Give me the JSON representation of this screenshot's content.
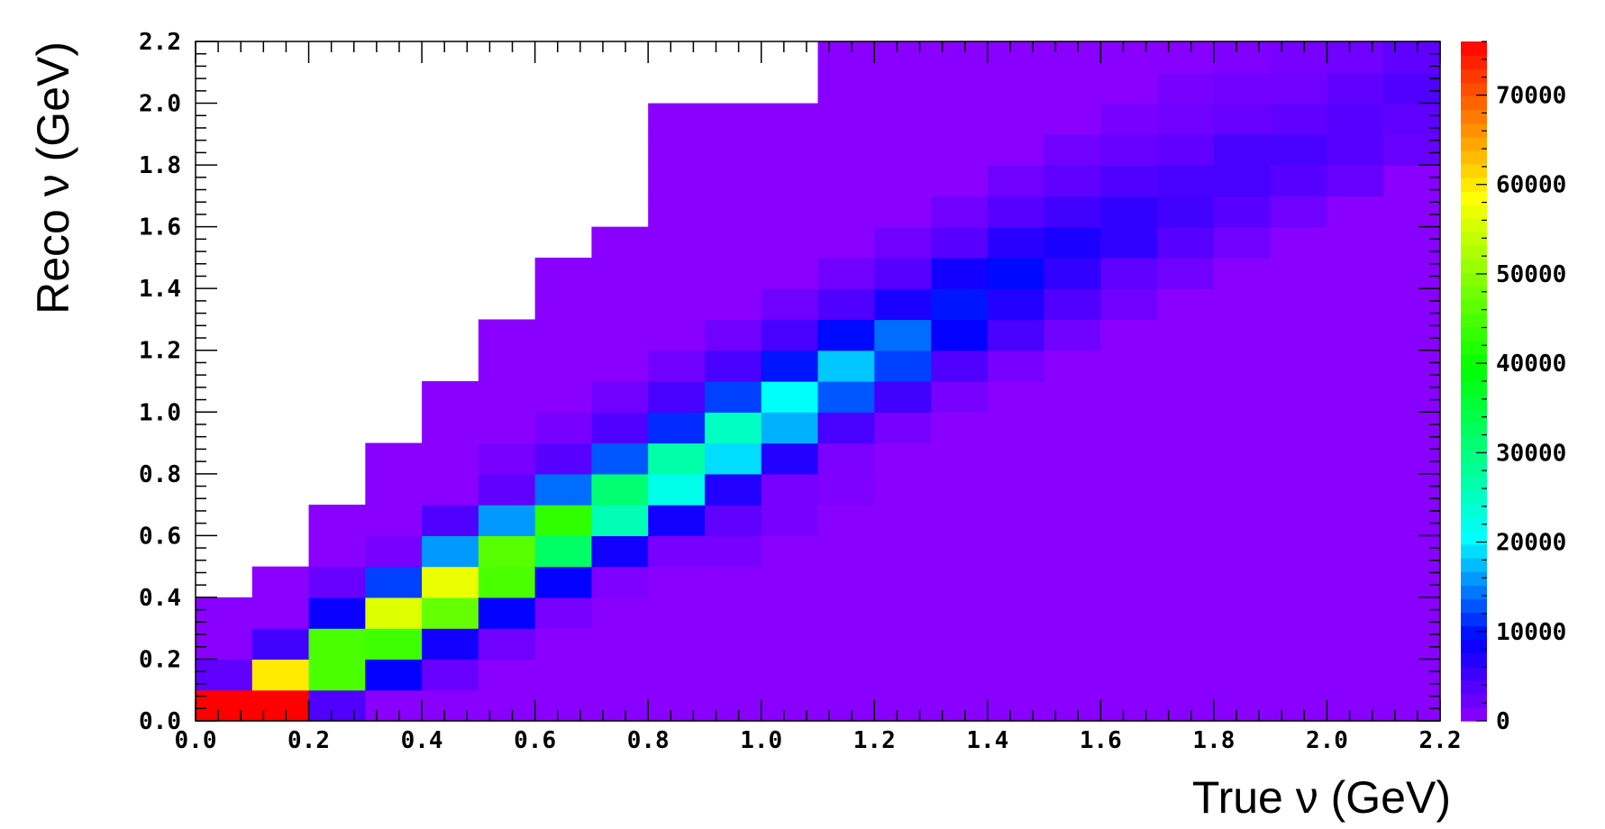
{
  "chart_data": {
    "type": "heatmap",
    "title": "",
    "xlabel": "True ν (GeV)",
    "ylabel": "Reco ν (GeV)",
    "xlim": [
      0,
      2.2
    ],
    "ylim": [
      0,
      2.2
    ],
    "bin_width": 0.1,
    "x_ticks": [
      "0.0",
      "0.2",
      "0.4",
      "0.6",
      "0.8",
      "1.0",
      "1.2",
      "1.4",
      "1.6",
      "1.8",
      "2.0",
      "2.2"
    ],
    "y_ticks": [
      "0.0",
      "0.2",
      "0.4",
      "0.6",
      "0.8",
      "1.0",
      "1.2",
      "1.4",
      "1.6",
      "1.8",
      "2.0",
      "2.2"
    ],
    "colorbar": {
      "min": 0,
      "max": 76000,
      "ticks": [
        "0",
        "10000",
        "20000",
        "30000",
        "40000",
        "50000",
        "60000",
        "70000"
      ]
    },
    "grid": false,
    "cells": [
      {
        "x": 0.0,
        "y": 0.0,
        "v": 76000
      },
      {
        "x": 0.1,
        "y": 0.0,
        "v": 76000
      },
      {
        "x": 0.2,
        "y": 0.0,
        "v": 4000
      },
      {
        "x": 0.0,
        "y": 0.1,
        "v": 3000
      },
      {
        "x": 0.1,
        "y": 0.1,
        "v": 60000
      },
      {
        "x": 0.2,
        "y": 0.1,
        "v": 45000
      },
      {
        "x": 0.3,
        "y": 0.1,
        "v": 9000
      },
      {
        "x": 0.4,
        "y": 0.1,
        "v": 2500
      },
      {
        "x": 0.0,
        "y": 0.2,
        "v": 300
      },
      {
        "x": 0.1,
        "y": 0.2,
        "v": 5000
      },
      {
        "x": 0.2,
        "y": 0.2,
        "v": 45000
      },
      {
        "x": 0.3,
        "y": 0.2,
        "v": 44000
      },
      {
        "x": 0.4,
        "y": 0.2,
        "v": 8000
      },
      {
        "x": 0.5,
        "y": 0.2,
        "v": 2000
      },
      {
        "x": 0.2,
        "y": 0.3,
        "v": 8500
      },
      {
        "x": 0.3,
        "y": 0.3,
        "v": 56000
      },
      {
        "x": 0.4,
        "y": 0.3,
        "v": 47000
      },
      {
        "x": 0.5,
        "y": 0.3,
        "v": 9000
      },
      {
        "x": 0.6,
        "y": 0.3,
        "v": 1500
      },
      {
        "x": 0.1,
        "y": 0.4,
        "v": 200
      },
      {
        "x": 0.2,
        "y": 0.4,
        "v": 2500
      },
      {
        "x": 0.3,
        "y": 0.4,
        "v": 12000
      },
      {
        "x": 0.4,
        "y": 0.4,
        "v": 57000
      },
      {
        "x": 0.5,
        "y": 0.4,
        "v": 45000
      },
      {
        "x": 0.6,
        "y": 0.4,
        "v": 9000
      },
      {
        "x": 0.7,
        "y": 0.4,
        "v": 1000
      },
      {
        "x": 0.3,
        "y": 0.5,
        "v": 1500
      },
      {
        "x": 0.4,
        "y": 0.5,
        "v": 16000
      },
      {
        "x": 0.5,
        "y": 0.5,
        "v": 46000
      },
      {
        "x": 0.6,
        "y": 0.5,
        "v": 32000
      },
      {
        "x": 0.7,
        "y": 0.5,
        "v": 8000
      },
      {
        "x": 0.8,
        "y": 0.5,
        "v": 1500
      },
      {
        "x": 0.9,
        "y": 0.5,
        "v": 1500
      },
      {
        "x": 0.4,
        "y": 0.6,
        "v": 4000
      },
      {
        "x": 0.5,
        "y": 0.6,
        "v": 16000
      },
      {
        "x": 0.6,
        "y": 0.6,
        "v": 43000
      },
      {
        "x": 0.7,
        "y": 0.6,
        "v": 26000
      },
      {
        "x": 0.8,
        "y": 0.6,
        "v": 8000
      },
      {
        "x": 0.9,
        "y": 0.6,
        "v": 3000
      },
      {
        "x": 1.0,
        "y": 0.6,
        "v": 1500
      },
      {
        "x": 0.5,
        "y": 0.7,
        "v": 3000
      },
      {
        "x": 0.6,
        "y": 0.7,
        "v": 14000
      },
      {
        "x": 0.7,
        "y": 0.7,
        "v": 31000
      },
      {
        "x": 0.8,
        "y": 0.7,
        "v": 22000
      },
      {
        "x": 0.9,
        "y": 0.7,
        "v": 7000
      },
      {
        "x": 1.0,
        "y": 0.7,
        "v": 1500
      },
      {
        "x": 1.1,
        "y": 0.7,
        "v": 1000
      },
      {
        "x": 0.5,
        "y": 0.8,
        "v": 1500
      },
      {
        "x": 0.6,
        "y": 0.8,
        "v": 3500
      },
      {
        "x": 0.7,
        "y": 0.8,
        "v": 13000
      },
      {
        "x": 0.8,
        "y": 0.8,
        "v": 27000
      },
      {
        "x": 0.9,
        "y": 0.8,
        "v": 19000
      },
      {
        "x": 1.0,
        "y": 0.8,
        "v": 7000
      },
      {
        "x": 1.1,
        "y": 0.8,
        "v": 1200
      },
      {
        "x": 0.6,
        "y": 0.9,
        "v": 1500
      },
      {
        "x": 0.7,
        "y": 0.9,
        "v": 4000
      },
      {
        "x": 0.8,
        "y": 0.9,
        "v": 11000
      },
      {
        "x": 0.9,
        "y": 0.9,
        "v": 25000
      },
      {
        "x": 1.0,
        "y": 0.9,
        "v": 17000
      },
      {
        "x": 1.1,
        "y": 0.9,
        "v": 4500
      },
      {
        "x": 1.2,
        "y": 0.9,
        "v": 1500
      },
      {
        "x": 0.7,
        "y": 1.0,
        "v": 2000
      },
      {
        "x": 0.8,
        "y": 1.0,
        "v": 4500
      },
      {
        "x": 0.9,
        "y": 1.0,
        "v": 12000
      },
      {
        "x": 1.0,
        "y": 1.0,
        "v": 21000
      },
      {
        "x": 1.1,
        "y": 1.0,
        "v": 13000
      },
      {
        "x": 1.2,
        "y": 1.0,
        "v": 5000
      },
      {
        "x": 1.3,
        "y": 1.0,
        "v": 1500
      },
      {
        "x": 0.8,
        "y": 1.1,
        "v": 2000
      },
      {
        "x": 0.9,
        "y": 1.1,
        "v": 4500
      },
      {
        "x": 1.0,
        "y": 1.1,
        "v": 10000
      },
      {
        "x": 1.1,
        "y": 1.1,
        "v": 18000
      },
      {
        "x": 1.2,
        "y": 1.1,
        "v": 12000
      },
      {
        "x": 1.3,
        "y": 1.1,
        "v": 4000
      },
      {
        "x": 1.4,
        "y": 1.1,
        "v": 1500
      },
      {
        "x": 0.9,
        "y": 1.2,
        "v": 2000
      },
      {
        "x": 1.0,
        "y": 1.2,
        "v": 4500
      },
      {
        "x": 1.1,
        "y": 1.2,
        "v": 9500
      },
      {
        "x": 1.2,
        "y": 1.2,
        "v": 14000
      },
      {
        "x": 1.3,
        "y": 1.2,
        "v": 9000
      },
      {
        "x": 1.4,
        "y": 1.2,
        "v": 4500
      },
      {
        "x": 1.5,
        "y": 1.2,
        "v": 2000
      },
      {
        "x": 1.0,
        "y": 1.3,
        "v": 2000
      },
      {
        "x": 1.1,
        "y": 1.3,
        "v": 4000
      },
      {
        "x": 1.2,
        "y": 1.3,
        "v": 7500
      },
      {
        "x": 1.3,
        "y": 1.3,
        "v": 10000
      },
      {
        "x": 1.4,
        "y": 1.3,
        "v": 7000
      },
      {
        "x": 1.5,
        "y": 1.3,
        "v": 4000
      },
      {
        "x": 1.6,
        "y": 1.3,
        "v": 2000
      },
      {
        "x": 1.1,
        "y": 1.4,
        "v": 2000
      },
      {
        "x": 1.2,
        "y": 1.4,
        "v": 3500
      },
      {
        "x": 1.3,
        "y": 1.4,
        "v": 8000
      },
      {
        "x": 1.4,
        "y": 1.4,
        "v": 9500
      },
      {
        "x": 1.5,
        "y": 1.4,
        "v": 6000
      },
      {
        "x": 1.6,
        "y": 1.4,
        "v": 3000
      },
      {
        "x": 1.7,
        "y": 1.4,
        "v": 2000
      },
      {
        "x": 1.2,
        "y": 1.5,
        "v": 2000
      },
      {
        "x": 1.3,
        "y": 1.5,
        "v": 3500
      },
      {
        "x": 1.4,
        "y": 1.5,
        "v": 6500
      },
      {
        "x": 1.5,
        "y": 1.5,
        "v": 7500
      },
      {
        "x": 1.6,
        "y": 1.5,
        "v": 6000
      },
      {
        "x": 1.7,
        "y": 1.5,
        "v": 3500
      },
      {
        "x": 1.8,
        "y": 1.5,
        "v": 2000
      },
      {
        "x": 1.3,
        "y": 1.6,
        "v": 2000
      },
      {
        "x": 1.4,
        "y": 1.6,
        "v": 3500
      },
      {
        "x": 1.5,
        "y": 1.6,
        "v": 5000
      },
      {
        "x": 1.6,
        "y": 1.6,
        "v": 6000
      },
      {
        "x": 1.7,
        "y": 1.6,
        "v": 5000
      },
      {
        "x": 1.8,
        "y": 1.6,
        "v": 3500
      },
      {
        "x": 1.9,
        "y": 1.6,
        "v": 2000
      },
      {
        "x": 1.4,
        "y": 1.7,
        "v": 2000
      },
      {
        "x": 1.5,
        "y": 1.7,
        "v": 3000
      },
      {
        "x": 1.6,
        "y": 1.7,
        "v": 4000
      },
      {
        "x": 1.7,
        "y": 1.7,
        "v": 4500
      },
      {
        "x": 1.8,
        "y": 1.7,
        "v": 4500
      },
      {
        "x": 1.9,
        "y": 1.7,
        "v": 3500
      },
      {
        "x": 2.0,
        "y": 1.7,
        "v": 2500
      },
      {
        "x": 1.5,
        "y": 1.8,
        "v": 2000
      },
      {
        "x": 1.6,
        "y": 1.8,
        "v": 2500
      },
      {
        "x": 1.7,
        "y": 1.8,
        "v": 3000
      },
      {
        "x": 1.8,
        "y": 1.8,
        "v": 4500
      },
      {
        "x": 1.9,
        "y": 1.8,
        "v": 4500
      },
      {
        "x": 2.0,
        "y": 1.8,
        "v": 3500
      },
      {
        "x": 2.1,
        "y": 1.8,
        "v": 2500
      },
      {
        "x": 1.6,
        "y": 1.9,
        "v": 1500
      },
      {
        "x": 1.7,
        "y": 1.9,
        "v": 2000
      },
      {
        "x": 1.8,
        "y": 1.9,
        "v": 2500
      },
      {
        "x": 1.9,
        "y": 1.9,
        "v": 3000
      },
      {
        "x": 2.0,
        "y": 1.9,
        "v": 3500
      },
      {
        "x": 2.1,
        "y": 1.9,
        "v": 3000
      },
      {
        "x": 1.7,
        "y": 2.0,
        "v": 1500
      },
      {
        "x": 1.8,
        "y": 2.0,
        "v": 2000
      },
      {
        "x": 1.9,
        "y": 2.0,
        "v": 2000
      },
      {
        "x": 2.0,
        "y": 2.0,
        "v": 3000
      },
      {
        "x": 2.1,
        "y": 2.0,
        "v": 4000
      },
      {
        "x": 1.7,
        "y": 2.1,
        "v": 500
      },
      {
        "x": 1.8,
        "y": 2.1,
        "v": 1000
      },
      {
        "x": 1.9,
        "y": 2.1,
        "v": 1500
      },
      {
        "x": 2.0,
        "y": 2.1,
        "v": 2000
      },
      {
        "x": 2.1,
        "y": 2.1,
        "v": 3000
      }
    ],
    "upper_edge": [
      0.4,
      0.5,
      0.7,
      0.9,
      1.1,
      1.3,
      1.5,
      1.6,
      2.0,
      2.0,
      2.0,
      2.2,
      2.2,
      2.2,
      2.2,
      2.2,
      2.2,
      2.2,
      2.2,
      2.2,
      2.2,
      2.2
    ]
  }
}
